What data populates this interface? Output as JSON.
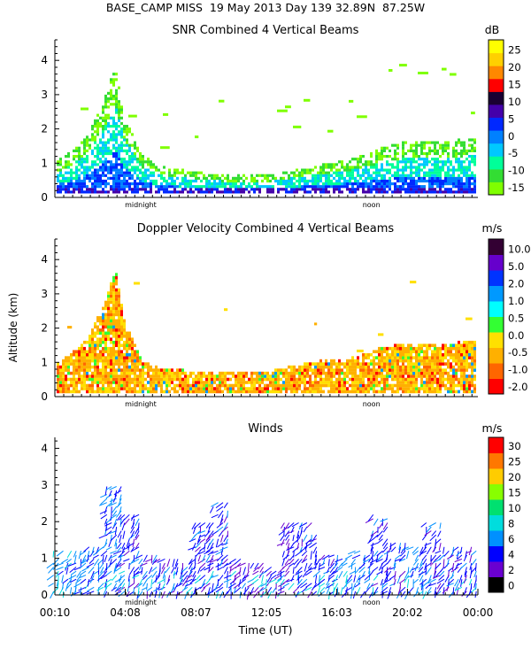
{
  "header": {
    "station": "BASE_CAMP MISS",
    "date": "19 May 2013",
    "day": "Day 139",
    "lat": "32.89N",
    "lon": "87.25W"
  },
  "colors": {
    "snr": [
      "#7fff00",
      "#33dd33",
      "#00ff99",
      "#00c8ff",
      "#0080ff",
      "#0028ff",
      "#4400aa",
      "#1a0033",
      "#ff0000",
      "#ff8800",
      "#ffd000",
      "#ffff00"
    ],
    "doppler": [
      "#ff0000",
      "#ff6600",
      "#ffb000",
      "#ffe000",
      "#33ff33",
      "#00ffff",
      "#0099ff",
      "#0033ff",
      "#6600cc",
      "#330033"
    ],
    "winds": [
      "#000000",
      "#6a00d0",
      "#0000ff",
      "#0090ff",
      "#00dddd",
      "#00e070",
      "#88ff00",
      "#ffcc00",
      "#ff7700",
      "#ff0000"
    ]
  },
  "chart_data": [
    {
      "type": "heatmap",
      "title": "SNR Combined 4 Vertical Beams",
      "units": "dB",
      "ylim": [
        0,
        4.6
      ],
      "yticks": [
        0,
        1,
        2,
        3,
        4
      ],
      "xlim_hours": [
        0.167,
        24.0
      ],
      "colorbar_ticks": [
        "25",
        "20",
        "15",
        "10",
        "5",
        "0",
        "-5",
        "-10",
        "-15"
      ],
      "colorbar_range": [
        -17.5,
        30
      ],
      "annotations": [
        "midnight",
        "noon"
      ],
      "annotation_hours": [
        5.0,
        18.0
      ],
      "echo_top_km": [
        [
          0.2,
          1.0
        ],
        [
          1.0,
          1.3
        ],
        [
          2.0,
          1.8
        ],
        [
          3.0,
          3.0
        ],
        [
          3.5,
          3.8
        ],
        [
          4.0,
          2.4
        ],
        [
          5.0,
          1.2
        ],
        [
          6.0,
          0.9
        ],
        [
          8.0,
          0.7
        ],
        [
          10.0,
          0.6
        ],
        [
          12.0,
          0.6
        ],
        [
          14.0,
          0.8
        ],
        [
          15.0,
          0.9
        ],
        [
          17.0,
          1.1
        ],
        [
          18.5,
          1.4
        ],
        [
          20.0,
          1.6
        ],
        [
          22.0,
          1.6
        ],
        [
          24.0,
          1.7
        ]
      ],
      "dominant_db_by_height": [
        {
          "km_max": 0.3,
          "db": 0
        },
        {
          "km_max": 0.7,
          "db": -5
        },
        {
          "km_max": 1.2,
          "db": -10
        },
        {
          "km_max": 4.6,
          "db": -15
        }
      ]
    },
    {
      "type": "heatmap",
      "title": "Doppler Velocity Combined 4 Vertical Beams",
      "units": "m/s",
      "ylabel": "Altitude (km)",
      "ylim": [
        0,
        4.6
      ],
      "yticks": [
        0,
        1,
        2,
        3,
        4
      ],
      "xlim_hours": [
        0.167,
        24.0
      ],
      "colorbar_ticks": [
        "10.0",
        "5.0",
        "2.0",
        "1.0",
        "0.5",
        "0.0",
        "-0.5",
        "-1.0",
        "-2.0"
      ],
      "annotations": [
        "midnight",
        "noon"
      ],
      "annotation_hours": [
        5.0,
        18.0
      ],
      "echo_top_km": [
        [
          0.2,
          0.9
        ],
        [
          1.0,
          1.2
        ],
        [
          2.0,
          1.7
        ],
        [
          3.0,
          2.8
        ],
        [
          3.5,
          3.7
        ],
        [
          4.0,
          2.2
        ],
        [
          5.0,
          1.0
        ],
        [
          6.0,
          0.8
        ],
        [
          8.0,
          0.7
        ],
        [
          10.0,
          0.7
        ],
        [
          12.0,
          0.7
        ],
        [
          14.0,
          0.9
        ],
        [
          15.0,
          1.0
        ],
        [
          17.0,
          1.1
        ],
        [
          18.5,
          1.4
        ],
        [
          20.0,
          1.5
        ],
        [
          22.0,
          1.5
        ],
        [
          24.0,
          1.6
        ]
      ],
      "dominant_ms": [
        0.0,
        -0.5,
        0.5
      ]
    },
    {
      "type": "scatter",
      "title": "Winds",
      "units": "m/s",
      "xlabel": "Time (UT)",
      "ylim": [
        0,
        4.3
      ],
      "yticks": [
        0,
        1,
        2,
        3,
        4
      ],
      "xlim_hours": [
        0.167,
        24.0
      ],
      "xticks": [
        "00:10",
        "04:08",
        "08:07",
        "12:05",
        "16:03",
        "20:02",
        "00:00"
      ],
      "xtick_hours": [
        0.167,
        4.133,
        8.117,
        12.083,
        16.05,
        20.033,
        24.0
      ],
      "colorbar_ticks": [
        "30",
        "25",
        "20",
        "15",
        "10",
        "8",
        "6",
        "4",
        "2",
        "0"
      ],
      "annotations": [
        "midnight",
        "noon"
      ],
      "annotation_hours": [
        5.0,
        18.0
      ],
      "barb_sample_times_hours": [
        0.5,
        1.5,
        2.5,
        3.5,
        4.5,
        5.5,
        6.5,
        7.5,
        8.5,
        9.5,
        10.5,
        11.5,
        12.5,
        13.5,
        14.5,
        15.5,
        16.5,
        17.5,
        18.5,
        19.5,
        20.5,
        21.5,
        22.5,
        23.5
      ],
      "barb_top_km": [
        1.3,
        1.3,
        1.4,
        3.0,
        2.2,
        1.1,
        1.0,
        1.0,
        2.0,
        2.6,
        1.0,
        0.9,
        0.8,
        2.0,
        2.0,
        1.2,
        1.2,
        1.3,
        2.2,
        1.5,
        1.4,
        2.0,
        1.4,
        1.4
      ],
      "barb_speed_ms": [
        6,
        6,
        5,
        5,
        4,
        4,
        4,
        4,
        4,
        4,
        3,
        3,
        3,
        3,
        4,
        4,
        5,
        5,
        4,
        4,
        5,
        4,
        4,
        4
      ]
    }
  ]
}
